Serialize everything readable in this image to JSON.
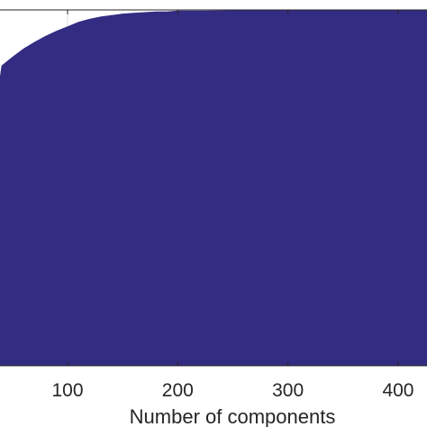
{
  "chart_data": {
    "type": "area",
    "title": "",
    "xlabel": "Number of components",
    "ylabel": "",
    "x_ticks": [
      100,
      200,
      300,
      400
    ],
    "xlim": [
      0,
      450
    ],
    "grid": true,
    "series": [
      {
        "fill_color": "#332c82",
        "x": [
          0,
          10,
          20,
          30,
          40,
          50,
          60,
          70,
          80,
          90,
          100,
          110,
          120,
          130,
          140,
          150,
          160,
          170,
          180,
          190,
          200,
          225,
          250,
          300,
          350,
          400,
          450
        ],
        "y": [
          0.868,
          0.882,
          0.897,
          0.911,
          0.925,
          0.937,
          0.948,
          0.957,
          0.965,
          0.972,
          0.978,
          0.984,
          0.988,
          0.991,
          0.993,
          0.995,
          0.996,
          0.997,
          0.998,
          0.998,
          0.999,
          0.999,
          0.9995,
          1.0,
          1.0,
          1.0,
          1.0
        ]
      }
    ]
  }
}
